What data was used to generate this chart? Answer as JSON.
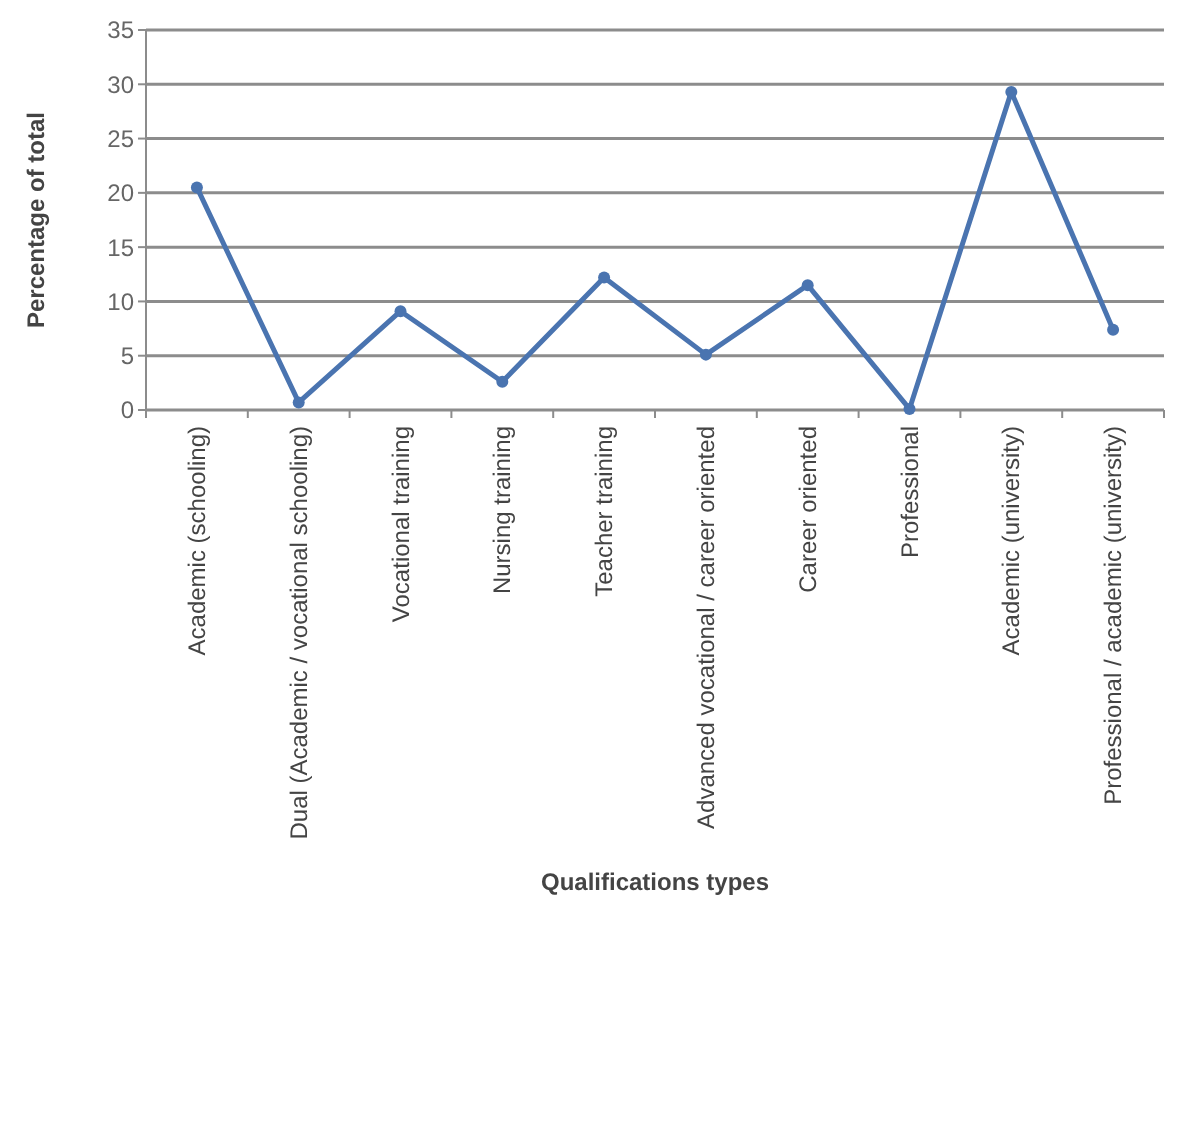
{
  "chart_data": {
    "type": "line",
    "xlabel": "Qualifications types",
    "ylabel": "Percentage of total",
    "categories": [
      "Academic (schooling)",
      "Dual (Academic / vocational schooling)",
      "Vocational training",
      "Nursing training",
      "Teacher training",
      "Advanced vocational / career oriented",
      "Career oriented",
      "Professional",
      "Academic (university)",
      "Professional / academic (university)"
    ],
    "series": [
      {
        "color": "#4a74b0",
        "values": [
          20.5,
          0.7,
          9.1,
          2.6,
          12.2,
          5.1,
          11.5,
          0.1,
          29.3,
          7.4
        ]
      }
    ],
    "ylim": [
      0,
      35
    ],
    "yticks": [
      0,
      5,
      10,
      15,
      20,
      25,
      30,
      35
    ],
    "grid": "y",
    "marker": "circle",
    "line_style": "solid"
  }
}
